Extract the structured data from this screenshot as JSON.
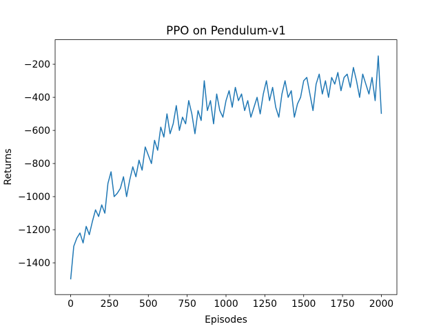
{
  "chart_data": {
    "type": "line",
    "title": "PPO on Pendulum-v1",
    "x_label": "Episodes",
    "y_label": "Returns",
    "x": [
      0,
      20,
      40,
      60,
      80,
      100,
      120,
      140,
      160,
      180,
      200,
      220,
      240,
      260,
      280,
      300,
      320,
      340,
      360,
      380,
      400,
      420,
      440,
      460,
      480,
      500,
      520,
      540,
      560,
      580,
      600,
      620,
      640,
      660,
      680,
      700,
      720,
      740,
      760,
      780,
      800,
      820,
      840,
      860,
      880,
      900,
      920,
      940,
      960,
      980,
      1000,
      1020,
      1040,
      1060,
      1080,
      1100,
      1120,
      1140,
      1160,
      1180,
      1200,
      1220,
      1240,
      1260,
      1280,
      1300,
      1320,
      1340,
      1360,
      1380,
      1400,
      1420,
      1440,
      1460,
      1480,
      1500,
      1520,
      1540,
      1560,
      1580,
      1600,
      1620,
      1640,
      1660,
      1680,
      1700,
      1720,
      1740,
      1760,
      1780,
      1800,
      1820,
      1840,
      1860,
      1880,
      1900,
      1920,
      1940,
      1960,
      1980,
      2000
    ],
    "values": [
      -1500,
      -1300,
      -1250,
      -1220,
      -1280,
      -1180,
      -1230,
      -1150,
      -1080,
      -1120,
      -1050,
      -1100,
      -920,
      -850,
      -1000,
      -980,
      -950,
      -880,
      -1000,
      -900,
      -820,
      -880,
      -780,
      -840,
      -700,
      -750,
      -800,
      -660,
      -720,
      -580,
      -640,
      -500,
      -620,
      -560,
      -450,
      -600,
      -520,
      -560,
      -420,
      -500,
      -620,
      -480,
      -540,
      -300,
      -480,
      -420,
      -560,
      -380,
      -480,
      -520,
      -420,
      -360,
      -460,
      -340,
      -420,
      -380,
      -480,
      -420,
      -520,
      -460,
      -400,
      -500,
      -380,
      -300,
      -420,
      -340,
      -460,
      -520,
      -380,
      -300,
      -400,
      -360,
      -520,
      -440,
      -400,
      -300,
      -280,
      -380,
      -480,
      -320,
      -260,
      -380,
      -300,
      -400,
      -280,
      -320,
      -250,
      -360,
      -280,
      -260,
      -340,
      -220,
      -300,
      -400,
      -260,
      -320,
      -380,
      -280,
      -420,
      -150,
      -500
    ],
    "color": "#1f77b4",
    "xlim": [
      -100,
      2100
    ],
    "ylim": [
      -1592,
      -52
    ],
    "xticks": [
      0,
      250,
      500,
      750,
      1000,
      1250,
      1500,
      1750,
      2000
    ],
    "yticks": [
      {
        "value": -1400,
        "label": "−1400"
      },
      {
        "value": -1200,
        "label": "−1200"
      },
      {
        "value": -1000,
        "label": "−1000"
      },
      {
        "value": -800,
        "label": "−800"
      },
      {
        "value": -600,
        "label": "−600"
      },
      {
        "value": -400,
        "label": "−400"
      },
      {
        "value": -200,
        "label": "−200"
      }
    ]
  }
}
